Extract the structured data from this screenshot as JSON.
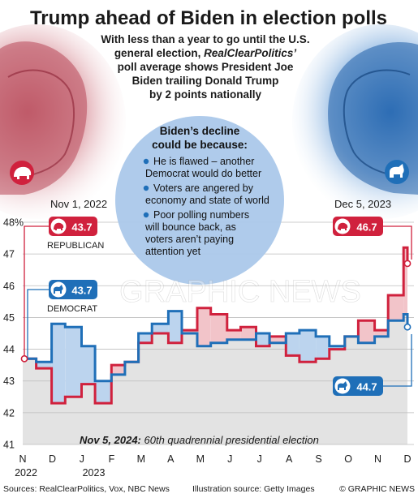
{
  "header": {
    "title": "Trump ahead of Biden in election polls",
    "subtitle_1": "With less than a year to go until the U.S.",
    "subtitle_2": "general election,",
    "subtitle_2_italic": "RealClearPolitics’",
    "subtitle_3": "poll average shows President Joe",
    "subtitle_4": "Biden trailing Donald Trump",
    "subtitle_5": "by 2 points nationally"
  },
  "callout": {
    "title_1": "Biden’s decline",
    "title_2": "could be because:",
    "reasons": [
      [
        "He is flawed – another",
        "Democrat would do better"
      ],
      [
        "Voters are angered by",
        "economy and state of world"
      ],
      [
        "Poor polling numbers",
        "will bounce back, as",
        "voters aren’t paying",
        "attention yet"
      ]
    ]
  },
  "labels": {
    "start_date": "Nov 1, 2022",
    "end_date": "Dec 5, 2023",
    "republican": "REPUBLICAN",
    "democrat": "DEMOCRAT",
    "start_rep_value": "43.7",
    "start_dem_value": "43.7",
    "end_rep_value": "46.7",
    "end_dem_value": "44.7",
    "election_bold": "Nov 5, 2024:",
    "election_text": "60th quadrennial presidential election"
  },
  "footer": {
    "sources": "Sources: RealClearPolitics, Vox, NBC News",
    "illustration": "Illustration source: Getty Images",
    "credit": "© GRAPHIC NEWS"
  },
  "watermark": "GRAPHIC NEWS",
  "colors": {
    "republican": "#d0213d",
    "democrat": "#1f6fb8",
    "rep_fill": "#f2c4c9",
    "dem_fill": "#bcd4ee",
    "background_fill": "#e3e3e3",
    "callout": "#a9c7ea"
  },
  "chart_data": {
    "type": "line",
    "title": "Trump ahead of Biden in election polls",
    "ylim": [
      41,
      48
    ],
    "yticks": [
      41,
      42,
      43,
      44,
      45,
      46,
      47,
      48
    ],
    "ytick_labels": [
      "41",
      "42",
      "43",
      "44",
      "45",
      "46",
      "47",
      "48%"
    ],
    "xtick_labels": [
      "N",
      "D",
      "J",
      "F",
      "M",
      "A",
      "M",
      "J",
      "J",
      "A",
      "S",
      "O",
      "N",
      "D"
    ],
    "year_labels": [
      "2022",
      "2023"
    ],
    "x": [
      "2022-11-01",
      "2022-11-15",
      "2022-12-01",
      "2022-12-15",
      "2023-01-01",
      "2023-01-15",
      "2023-02-01",
      "2023-02-15",
      "2023-03-01",
      "2023-03-15",
      "2023-04-01",
      "2023-04-15",
      "2023-05-01",
      "2023-05-15",
      "2023-06-01",
      "2023-06-15",
      "2023-07-01",
      "2023-07-15",
      "2023-08-01",
      "2023-08-15",
      "2023-09-01",
      "2023-09-15",
      "2023-10-01",
      "2023-10-15",
      "2023-11-01",
      "2023-11-15",
      "2023-12-01",
      "2023-12-05"
    ],
    "series": [
      {
        "name": "REPUBLICAN",
        "values": [
          43.7,
          43.4,
          42.3,
          42.5,
          42.9,
          42.3,
          43.5,
          43.6,
          44.2,
          44.5,
          44.2,
          44.6,
          45.3,
          45.1,
          44.6,
          44.7,
          44.1,
          44.4,
          43.8,
          43.6,
          43.7,
          44.0,
          44.4,
          44.9,
          44.6,
          45.7,
          47.2,
          46.7
        ]
      },
      {
        "name": "DEMOCRAT",
        "values": [
          43.7,
          43.6,
          44.8,
          44.7,
          44.1,
          43.0,
          43.2,
          43.6,
          44.5,
          44.8,
          45.2,
          44.5,
          44.1,
          44.2,
          44.3,
          44.3,
          44.5,
          44.2,
          44.5,
          44.6,
          44.4,
          44.1,
          44.4,
          44.2,
          44.4,
          44.9,
          45.1,
          44.7
        ]
      }
    ]
  }
}
